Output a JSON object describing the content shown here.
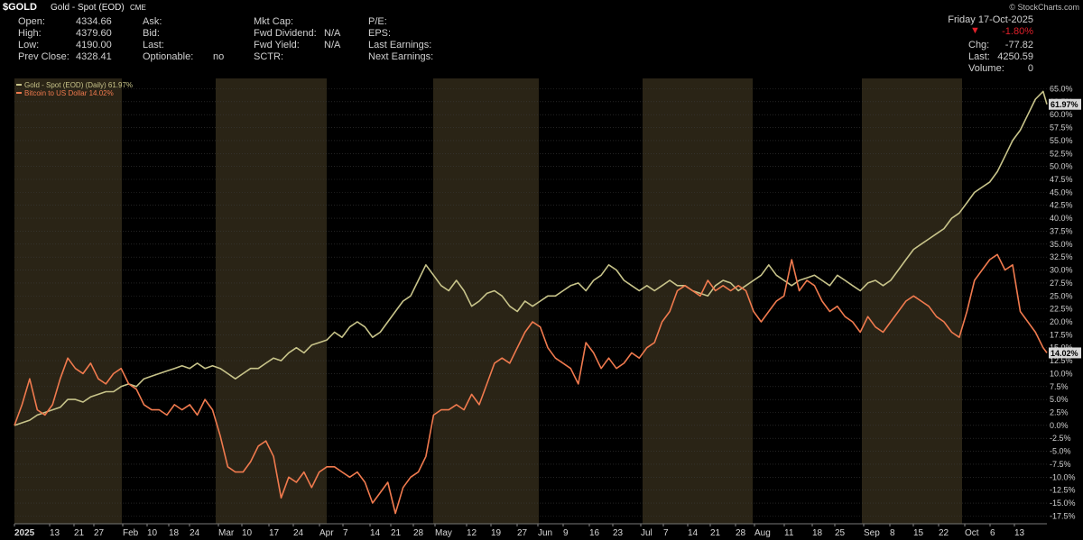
{
  "header": {
    "symbol": "$GOLD",
    "name": "Gold - Spot (EOD)",
    "exchange": "CME",
    "source": "© StockCharts.com"
  },
  "quote": {
    "open_label": "Open:",
    "open": "4334.66",
    "high_label": "High:",
    "high": "4379.60",
    "low_label": "Low:",
    "low": "4190.00",
    "prev_label": "Prev Close:",
    "prev": "4328.41",
    "ask_label": "Ask:",
    "bid_label": "Bid:",
    "last_label": "Last:",
    "optionable_label": "Optionable:",
    "optionable": "no",
    "mktcap_label": "Mkt Cap:",
    "fwddiv_label": "Fwd Dividend:",
    "fwddiv": "N/A",
    "fwdyield_label": "Fwd Yield:",
    "fwdyield": "N/A",
    "sctr_label": "SCTR:",
    "pe_label": "P/E:",
    "eps_label": "EPS:",
    "lastearn_label": "Last Earnings:",
    "nextearn_label": "Next Earnings:",
    "date": "Friday  17-Oct-2025",
    "change_pct": "-1.80%",
    "chg_label": "Chg:",
    "chg": "-77.82",
    "lastval_label": "Last:",
    "lastval": "4250.59",
    "volume_label": "Volume:",
    "volume": "0"
  },
  "colors": {
    "gold_line": "#c8c48a",
    "btc_line": "#f07a4e",
    "band_odd": "#2a2416",
    "band_even": "#000000",
    "grid": "#3a3a3a",
    "down": "#e0202a"
  },
  "chart_data": {
    "type": "line",
    "y_unit": "%",
    "ylim": [
      -19,
      67
    ],
    "y_ticks": [
      "65.0%",
      "62.5%",
      "60.0%",
      "57.5%",
      "55.0%",
      "52.5%",
      "50.0%",
      "47.5%",
      "45.0%",
      "42.5%",
      "40.0%",
      "37.5%",
      "35.0%",
      "32.5%",
      "30.0%",
      "27.5%",
      "25.0%",
      "22.5%",
      "20.0%",
      "17.5%",
      "15.0%",
      "12.5%",
      "10.0%",
      "7.5%",
      "5.0%",
      "2.5%",
      "0.0%",
      "-2.5%",
      "-5.0%",
      "-7.5%",
      "-10.0%",
      "-12.5%",
      "-15.0%",
      "-17.5%"
    ],
    "x_labels": [
      "2025",
      "13",
      "21",
      "27",
      "Feb",
      "10",
      "18",
      "24",
      "Mar",
      "10",
      "17",
      "24",
      "Apr",
      "7",
      "14",
      "21",
      "28",
      "May",
      "12",
      "19",
      "27",
      "Jun",
      "9",
      "16",
      "23",
      "Jul",
      "7",
      "14",
      "21",
      "28",
      "Aug",
      "11",
      "18",
      "25",
      "Sep",
      "8",
      "15",
      "22",
      "Oct",
      "6",
      "13"
    ],
    "x_start": "2025-01-02",
    "x_end": "2025-10-17",
    "month_bands": [
      "Jan",
      "Feb",
      "Mar",
      "Apr",
      "May",
      "Jun",
      "Jul",
      "Aug",
      "Sep",
      "Oct"
    ],
    "grid": true,
    "legend_position": "top-left",
    "series": [
      {
        "name": "Gold - Spot (EOD) (Daily) 61.97%",
        "last_label": "61.97%",
        "values": [
          [
            0,
            0
          ],
          [
            2,
            0.5
          ],
          [
            4,
            1
          ],
          [
            6,
            2
          ],
          [
            8,
            2.5
          ],
          [
            10,
            3
          ],
          [
            12,
            3.5
          ],
          [
            14,
            5
          ],
          [
            16,
            5
          ],
          [
            18,
            4.5
          ],
          [
            20,
            5.5
          ],
          [
            22,
            6
          ],
          [
            24,
            6.5
          ],
          [
            26,
            6.5
          ],
          [
            28,
            7.5
          ],
          [
            30,
            8
          ],
          [
            32,
            7.5
          ],
          [
            34,
            9
          ],
          [
            36,
            9.5
          ],
          [
            38,
            10
          ],
          [
            40,
            10.5
          ],
          [
            42,
            11
          ],
          [
            44,
            11.5
          ],
          [
            46,
            11
          ],
          [
            48,
            12
          ],
          [
            50,
            11
          ],
          [
            52,
            11.5
          ],
          [
            54,
            11
          ],
          [
            56,
            10
          ],
          [
            58,
            9
          ],
          [
            60,
            10
          ],
          [
            62,
            11
          ],
          [
            64,
            11
          ],
          [
            66,
            12
          ],
          [
            68,
            13
          ],
          [
            70,
            12.5
          ],
          [
            72,
            14
          ],
          [
            74,
            15
          ],
          [
            76,
            14
          ],
          [
            78,
            15.5
          ],
          [
            80,
            16
          ],
          [
            82,
            16.5
          ],
          [
            84,
            18
          ],
          [
            86,
            17
          ],
          [
            88,
            19
          ],
          [
            90,
            20
          ],
          [
            92,
            19
          ],
          [
            94,
            17
          ],
          [
            96,
            18
          ],
          [
            98,
            20
          ],
          [
            100,
            22
          ],
          [
            102,
            24
          ],
          [
            104,
            25
          ],
          [
            106,
            28
          ],
          [
            108,
            31
          ],
          [
            110,
            29
          ],
          [
            112,
            27
          ],
          [
            114,
            26
          ],
          [
            116,
            28
          ],
          [
            118,
            26
          ],
          [
            120,
            23
          ],
          [
            122,
            24
          ],
          [
            124,
            25.5
          ],
          [
            126,
            26
          ],
          [
            128,
            25
          ],
          [
            130,
            23
          ],
          [
            132,
            22
          ],
          [
            134,
            24
          ],
          [
            136,
            23
          ],
          [
            138,
            24
          ],
          [
            140,
            25
          ],
          [
            142,
            25
          ],
          [
            144,
            26
          ],
          [
            146,
            27
          ],
          [
            148,
            27.5
          ],
          [
            150,
            26
          ],
          [
            152,
            28
          ],
          [
            154,
            29
          ],
          [
            156,
            31
          ],
          [
            158,
            30
          ],
          [
            160,
            28
          ],
          [
            162,
            27
          ],
          [
            164,
            26
          ],
          [
            166,
            27
          ],
          [
            168,
            26
          ],
          [
            170,
            27
          ],
          [
            172,
            28
          ],
          [
            174,
            27
          ],
          [
            176,
            27
          ],
          [
            178,
            26
          ],
          [
            180,
            25.5
          ],
          [
            182,
            25
          ],
          [
            184,
            27
          ],
          [
            186,
            28
          ],
          [
            188,
            27.5
          ],
          [
            190,
            26
          ],
          [
            192,
            27
          ],
          [
            194,
            28
          ],
          [
            196,
            29
          ],
          [
            198,
            31
          ],
          [
            200,
            29
          ],
          [
            202,
            28
          ],
          [
            204,
            27
          ],
          [
            206,
            28
          ],
          [
            208,
            28.5
          ],
          [
            210,
            29
          ],
          [
            212,
            28
          ],
          [
            214,
            27
          ],
          [
            216,
            29
          ],
          [
            218,
            28
          ],
          [
            220,
            27
          ],
          [
            222,
            26
          ],
          [
            224,
            27.5
          ],
          [
            226,
            28
          ],
          [
            228,
            27
          ],
          [
            230,
            28
          ],
          [
            232,
            30
          ],
          [
            234,
            32
          ],
          [
            236,
            34
          ],
          [
            238,
            35
          ],
          [
            240,
            36
          ],
          [
            242,
            37
          ],
          [
            244,
            38
          ],
          [
            246,
            40
          ],
          [
            248,
            41
          ],
          [
            250,
            43
          ],
          [
            252,
            45
          ],
          [
            254,
            46
          ],
          [
            256,
            47
          ],
          [
            258,
            49
          ],
          [
            260,
            52
          ],
          [
            262,
            55
          ],
          [
            264,
            57
          ],
          [
            266,
            60
          ],
          [
            268,
            63
          ],
          [
            270,
            64.5
          ],
          [
            271,
            62
          ]
        ]
      },
      {
        "name": "Bitcoin to US Dollar 14.02%",
        "last_label": "14.02%",
        "values": [
          [
            0,
            0
          ],
          [
            2,
            4
          ],
          [
            4,
            9
          ],
          [
            6,
            3
          ],
          [
            8,
            2
          ],
          [
            10,
            4
          ],
          [
            12,
            9
          ],
          [
            14,
            13
          ],
          [
            16,
            11
          ],
          [
            18,
            10
          ],
          [
            20,
            12
          ],
          [
            22,
            9
          ],
          [
            24,
            8
          ],
          [
            26,
            10
          ],
          [
            28,
            11
          ],
          [
            30,
            8
          ],
          [
            32,
            7
          ],
          [
            34,
            4
          ],
          [
            36,
            3
          ],
          [
            38,
            3
          ],
          [
            40,
            2
          ],
          [
            42,
            4
          ],
          [
            44,
            3
          ],
          [
            46,
            4
          ],
          [
            48,
            2
          ],
          [
            50,
            5
          ],
          [
            52,
            3
          ],
          [
            54,
            -2
          ],
          [
            56,
            -8
          ],
          [
            58,
            -9
          ],
          [
            60,
            -9
          ],
          [
            62,
            -7
          ],
          [
            64,
            -4
          ],
          [
            66,
            -3
          ],
          [
            68,
            -6
          ],
          [
            70,
            -14
          ],
          [
            72,
            -10
          ],
          [
            74,
            -11
          ],
          [
            76,
            -9
          ],
          [
            78,
            -12
          ],
          [
            80,
            -9
          ],
          [
            82,
            -8
          ],
          [
            84,
            -8
          ],
          [
            86,
            -9
          ],
          [
            88,
            -10
          ],
          [
            90,
            -9
          ],
          [
            92,
            -11
          ],
          [
            94,
            -15
          ],
          [
            96,
            -13
          ],
          [
            98,
            -11
          ],
          [
            100,
            -17
          ],
          [
            102,
            -12
          ],
          [
            104,
            -10
          ],
          [
            106,
            -9
          ],
          [
            108,
            -6
          ],
          [
            110,
            2
          ],
          [
            112,
            3
          ],
          [
            114,
            3
          ],
          [
            116,
            4
          ],
          [
            118,
            3
          ],
          [
            120,
            6
          ],
          [
            122,
            4
          ],
          [
            124,
            8
          ],
          [
            126,
            12
          ],
          [
            128,
            13
          ],
          [
            130,
            12
          ],
          [
            132,
            15
          ],
          [
            134,
            18
          ],
          [
            136,
            20
          ],
          [
            138,
            19
          ],
          [
            140,
            15
          ],
          [
            142,
            13
          ],
          [
            144,
            12
          ],
          [
            146,
            11
          ],
          [
            148,
            8
          ],
          [
            150,
            16
          ],
          [
            152,
            14
          ],
          [
            154,
            11
          ],
          [
            156,
            13
          ],
          [
            158,
            11
          ],
          [
            160,
            12
          ],
          [
            162,
            14
          ],
          [
            164,
            13
          ],
          [
            166,
            15
          ],
          [
            168,
            16
          ],
          [
            170,
            20
          ],
          [
            172,
            22
          ],
          [
            174,
            26
          ],
          [
            176,
            27
          ],
          [
            178,
            26
          ],
          [
            180,
            25
          ],
          [
            182,
            28
          ],
          [
            184,
            26
          ],
          [
            186,
            27
          ],
          [
            188,
            26
          ],
          [
            190,
            27
          ],
          [
            192,
            26
          ],
          [
            194,
            22
          ],
          [
            196,
            20
          ],
          [
            198,
            22
          ],
          [
            200,
            24
          ],
          [
            202,
            25
          ],
          [
            204,
            32
          ],
          [
            206,
            26
          ],
          [
            208,
            28
          ],
          [
            210,
            27
          ],
          [
            212,
            24
          ],
          [
            214,
            22
          ],
          [
            216,
            23
          ],
          [
            218,
            21
          ],
          [
            220,
            20
          ],
          [
            222,
            18
          ],
          [
            224,
            21
          ],
          [
            226,
            19
          ],
          [
            228,
            18
          ],
          [
            230,
            20
          ],
          [
            232,
            22
          ],
          [
            234,
            24
          ],
          [
            236,
            25
          ],
          [
            238,
            24
          ],
          [
            240,
            23
          ],
          [
            242,
            21
          ],
          [
            244,
            20
          ],
          [
            246,
            18
          ],
          [
            248,
            17
          ],
          [
            250,
            22
          ],
          [
            252,
            28
          ],
          [
            254,
            30
          ],
          [
            256,
            32
          ],
          [
            258,
            33
          ],
          [
            260,
            30
          ],
          [
            262,
            31
          ],
          [
            264,
            22
          ],
          [
            266,
            20
          ],
          [
            268,
            18
          ],
          [
            270,
            15
          ],
          [
            271,
            14
          ]
        ]
      }
    ]
  }
}
